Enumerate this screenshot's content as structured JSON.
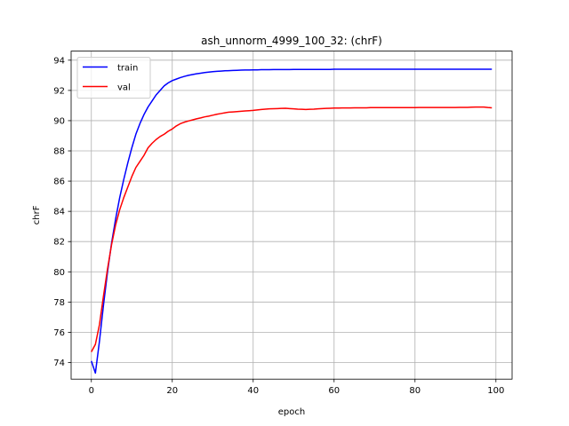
{
  "chart_data": {
    "type": "line",
    "title": "ash_unnorm_4999_100_32: (chrF)",
    "xlabel": "epoch",
    "ylabel": "chrF",
    "xlim": [
      -5,
      104
    ],
    "ylim": [
      72.9,
      94.6
    ],
    "xticks": [
      0,
      20,
      40,
      60,
      80,
      100
    ],
    "yticks": [
      74,
      76,
      78,
      80,
      82,
      84,
      86,
      88,
      90,
      92,
      94
    ],
    "grid": true,
    "legend_position": "upper-left",
    "series": [
      {
        "name": "train",
        "color": "#0000ff",
        "x": [
          0,
          1,
          2,
          3,
          4,
          5,
          6,
          7,
          8,
          9,
          10,
          11,
          12,
          13,
          14,
          15,
          16,
          17,
          18,
          19,
          20,
          21,
          22,
          23,
          24,
          25,
          26,
          27,
          28,
          29,
          30,
          31,
          32,
          33,
          34,
          35,
          36,
          37,
          38,
          39,
          40,
          41,
          42,
          43,
          44,
          45,
          46,
          47,
          48,
          49,
          50,
          51,
          52,
          53,
          54,
          55,
          56,
          57,
          58,
          59,
          60,
          61,
          62,
          63,
          64,
          65,
          66,
          67,
          68,
          69,
          70,
          71,
          72,
          73,
          74,
          75,
          76,
          77,
          78,
          79,
          80,
          81,
          82,
          83,
          84,
          85,
          86,
          87,
          88,
          89,
          90,
          91,
          92,
          93,
          94,
          95,
          96,
          97,
          98,
          99
        ],
        "y": [
          74.1,
          73.3,
          75.4,
          77.8,
          80.0,
          81.9,
          83.5,
          84.9,
          86.1,
          87.2,
          88.2,
          89.1,
          89.8,
          90.4,
          90.9,
          91.3,
          91.7,
          92.0,
          92.3,
          92.5,
          92.65,
          92.75,
          92.85,
          92.93,
          93.0,
          93.05,
          93.1,
          93.14,
          93.18,
          93.21,
          93.24,
          93.26,
          93.28,
          93.3,
          93.31,
          93.32,
          93.33,
          93.34,
          93.35,
          93.35,
          93.36,
          93.36,
          93.37,
          93.37,
          93.37,
          93.38,
          93.38,
          93.38,
          93.38,
          93.38,
          93.39,
          93.39,
          93.39,
          93.39,
          93.39,
          93.39,
          93.39,
          93.39,
          93.39,
          93.39,
          93.4,
          93.4,
          93.4,
          93.4,
          93.4,
          93.4,
          93.4,
          93.4,
          93.4,
          93.4,
          93.4,
          93.4,
          93.4,
          93.4,
          93.4,
          93.4,
          93.4,
          93.4,
          93.4,
          93.4,
          93.4,
          93.4,
          93.4,
          93.4,
          93.4,
          93.4,
          93.4,
          93.4,
          93.4,
          93.4,
          93.4,
          93.4,
          93.4,
          93.4,
          93.4,
          93.4,
          93.4,
          93.4,
          93.4,
          93.4
        ]
      },
      {
        "name": "val",
        "color": "#ff0000",
        "x": [
          0,
          1,
          2,
          3,
          4,
          5,
          6,
          7,
          8,
          9,
          10,
          11,
          12,
          13,
          14,
          15,
          16,
          17,
          18,
          19,
          20,
          21,
          22,
          23,
          24,
          25,
          26,
          27,
          28,
          29,
          30,
          31,
          32,
          33,
          34,
          35,
          36,
          37,
          38,
          39,
          40,
          41,
          42,
          43,
          44,
          45,
          46,
          47,
          48,
          49,
          50,
          51,
          52,
          53,
          54,
          55,
          56,
          57,
          58,
          59,
          60,
          61,
          62,
          63,
          64,
          65,
          66,
          67,
          68,
          69,
          70,
          71,
          72,
          73,
          74,
          75,
          76,
          77,
          78,
          79,
          80,
          81,
          82,
          83,
          84,
          85,
          86,
          87,
          88,
          89,
          90,
          91,
          92,
          93,
          94,
          95,
          96,
          97,
          98,
          99
        ],
        "y": [
          74.7,
          75.2,
          76.5,
          78.4,
          80.2,
          81.8,
          83.1,
          84.1,
          84.9,
          85.6,
          86.3,
          86.9,
          87.3,
          87.7,
          88.2,
          88.5,
          88.75,
          88.95,
          89.1,
          89.3,
          89.45,
          89.65,
          89.8,
          89.9,
          89.98,
          90.05,
          90.12,
          90.18,
          90.25,
          90.3,
          90.36,
          90.42,
          90.47,
          90.52,
          90.56,
          90.58,
          90.6,
          90.62,
          90.64,
          90.66,
          90.68,
          90.71,
          90.74,
          90.76,
          90.78,
          90.79,
          90.8,
          90.81,
          90.82,
          90.8,
          90.78,
          90.76,
          90.75,
          90.74,
          90.75,
          90.76,
          90.78,
          90.8,
          90.81,
          90.82,
          90.83,
          90.83,
          90.84,
          90.84,
          90.84,
          90.85,
          90.85,
          90.85,
          90.85,
          90.86,
          90.86,
          90.86,
          90.86,
          90.86,
          90.86,
          90.86,
          90.86,
          90.86,
          90.86,
          90.86,
          90.86,
          90.87,
          90.87,
          90.87,
          90.87,
          90.87,
          90.87,
          90.87,
          90.87,
          90.87,
          90.87,
          90.88,
          90.88,
          90.88,
          90.89,
          90.9,
          90.9,
          90.9,
          90.87,
          90.85
        ]
      }
    ]
  }
}
